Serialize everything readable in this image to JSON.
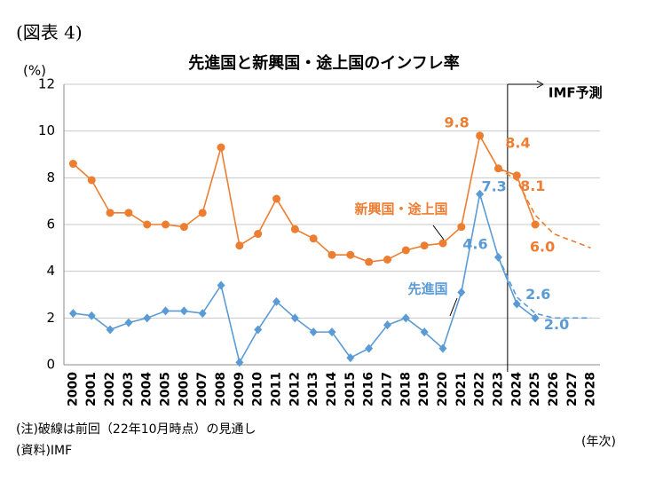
{
  "chart_data": {
    "type": "line",
    "label": "(図表 4)",
    "title": "先進国と新興国・途上国のインフレ率",
    "y_label": "(%)",
    "x_label": "(年次)",
    "annotation": "IMF予測",
    "notes": [
      "(注)破線は前回（22年10月時点）の見通し",
      "(資料)IMF"
    ],
    "categories": [
      "2000",
      "2001",
      "2002",
      "2003",
      "2004",
      "2005",
      "2006",
      "2007",
      "2008",
      "2009",
      "2010",
      "2011",
      "2012",
      "2013",
      "2014",
      "2015",
      "2016",
      "2017",
      "2018",
      "2019",
      "2020",
      "2021",
      "2022",
      "2023",
      "2024",
      "2025",
      "2026",
      "2027",
      "2028"
    ],
    "ylim": [
      0,
      12
    ],
    "yticks": [
      0,
      2,
      4,
      6,
      8,
      10,
      12
    ],
    "grid": true,
    "series": [
      {
        "name": "新興国・途上国",
        "color": "#ed7d31",
        "marker": "circle",
        "values": [
          8.6,
          7.9,
          6.5,
          6.5,
          6.0,
          6.0,
          5.9,
          6.5,
          9.3,
          5.1,
          5.6,
          7.1,
          5.8,
          5.4,
          4.7,
          4.7,
          4.4,
          4.5,
          4.9,
          5.1,
          5.2,
          5.9,
          9.8,
          8.4,
          8.1,
          6.0,
          null,
          null,
          null
        ],
        "value_labels": [
          null,
          null,
          null,
          null,
          null,
          null,
          null,
          null,
          null,
          null,
          null,
          null,
          null,
          null,
          null,
          null,
          null,
          null,
          null,
          null,
          null,
          null,
          "9.8",
          "8.4",
          "8.1",
          "6.0",
          null,
          null,
          null
        ]
      },
      {
        "name": "先進国",
        "color": "#5b9bd5",
        "marker": "diamond",
        "values": [
          2.2,
          2.1,
          1.5,
          1.8,
          2.0,
          2.3,
          2.3,
          2.2,
          3.4,
          0.1,
          1.5,
          2.7,
          2.0,
          1.4,
          1.4,
          0.3,
          0.7,
          1.7,
          2.0,
          1.4,
          0.7,
          3.1,
          7.3,
          4.6,
          2.6,
          2.0,
          null,
          null,
          null
        ],
        "value_labels": [
          null,
          null,
          null,
          null,
          null,
          null,
          null,
          null,
          null,
          null,
          null,
          null,
          null,
          null,
          null,
          null,
          null,
          null,
          null,
          null,
          null,
          null,
          "7.3",
          "4.6",
          "2.6",
          "2.0",
          null,
          null,
          null
        ]
      },
      {
        "color": "#ed7d31",
        "dashed": true,
        "values": [
          null,
          null,
          null,
          null,
          null,
          null,
          null,
          null,
          null,
          null,
          null,
          null,
          null,
          null,
          null,
          null,
          null,
          null,
          null,
          null,
          null,
          null,
          null,
          8.4,
          7.9,
          6.4,
          5.6,
          5.3,
          5.0
        ]
      },
      {
        "color": "#5b9bd5",
        "dashed": true,
        "values": [
          null,
          null,
          null,
          null,
          null,
          null,
          null,
          null,
          null,
          null,
          null,
          null,
          null,
          null,
          null,
          null,
          null,
          null,
          null,
          null,
          null,
          null,
          null,
          4.6,
          2.9,
          2.2,
          2.0,
          2.0,
          2.0
        ]
      }
    ]
  }
}
